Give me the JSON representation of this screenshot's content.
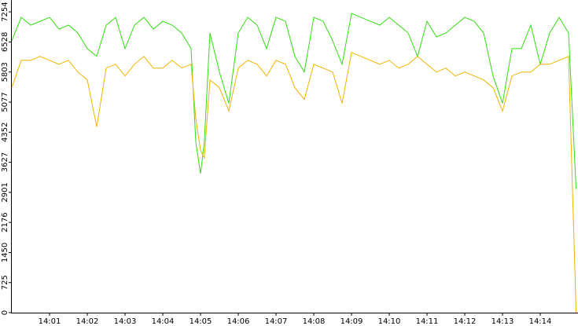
{
  "chart_data": {
    "type": "line",
    "x": [
      0,
      0.25,
      0.5,
      0.75,
      1,
      1.25,
      1.5,
      1.75,
      2,
      2.25,
      2.5,
      2.75,
      3,
      3.25,
      3.5,
      3.75,
      4,
      4.25,
      4.5,
      4.75,
      4.875,
      5,
      5.1,
      5.25,
      5.5,
      5.75,
      6,
      6.25,
      6.5,
      6.75,
      7,
      7.25,
      7.5,
      7.75,
      8,
      8.25,
      8.5,
      8.75,
      9,
      9.25,
      9.5,
      9.75,
      10,
      10.25,
      10.5,
      10.75,
      11,
      11.25,
      11.5,
      11.75,
      12,
      12.25,
      12.5,
      12.75,
      13,
      13.25,
      13.5,
      13.75,
      14,
      14.25,
      14.5,
      14.75,
      14.95
    ],
    "series": [
      {
        "name": "green",
        "color": "#33dd11",
        "values": [
          6556,
          7122,
          6933,
          7027,
          7122,
          6839,
          6933,
          6745,
          6368,
          6180,
          6933,
          7122,
          6368,
          6933,
          7122,
          6839,
          7027,
          6933,
          6745,
          6368,
          4107,
          3354,
          4107,
          6745,
          5803,
          5049,
          6745,
          7122,
          6933,
          6368,
          7122,
          7027,
          6180,
          5803,
          7122,
          7027,
          6556,
          5991,
          7216,
          7122,
          7027,
          6933,
          7122,
          6933,
          6745,
          6180,
          7027,
          6650,
          6745,
          6933,
          7122,
          7027,
          6745,
          5708,
          5049,
          6368,
          6368,
          6933,
          5991,
          6745,
          7122,
          6745,
          2977
        ]
      },
      {
        "name": "orange",
        "color": "#f0b400",
        "values": [
          5426,
          6085,
          6085,
          6180,
          6085,
          5991,
          6085,
          5803,
          5614,
          4484,
          5897,
          5991,
          5708,
          5991,
          6180,
          5897,
          5897,
          6085,
          5897,
          5991,
          4672,
          3919,
          3730,
          5614,
          5426,
          4861,
          5897,
          6085,
          5991,
          5708,
          6085,
          5991,
          5426,
          5143,
          5991,
          5897,
          5803,
          5049,
          6274,
          6180,
          6085,
          5991,
          6085,
          5897,
          5991,
          6180,
          5991,
          5803,
          5897,
          5708,
          5803,
          5708,
          5614,
          5426,
          4861,
          5708,
          5803,
          5803,
          5991,
          5991,
          6085,
          6180,
          0
        ]
      }
    ],
    "xlim": [
      0,
      15
    ],
    "xticks": [
      {
        "value": 1,
        "label": "14:01"
      },
      {
        "value": 2,
        "label": "14:02"
      },
      {
        "value": 3,
        "label": "14:03"
      },
      {
        "value": 4,
        "label": "14:04"
      },
      {
        "value": 5,
        "label": "14:05"
      },
      {
        "value": 6,
        "label": "14:06"
      },
      {
        "value": 7,
        "label": "14:07"
      },
      {
        "value": 8,
        "label": "14:08"
      },
      {
        "value": 9,
        "label": "14:09"
      },
      {
        "value": 10,
        "label": "14:10"
      },
      {
        "value": 11,
        "label": "14:11"
      },
      {
        "value": 12,
        "label": "14:12"
      },
      {
        "value": 13,
        "label": "14:13"
      },
      {
        "value": 14,
        "label": "14:14"
      }
    ],
    "ylim": [
      0,
      7540
    ],
    "yticks": [
      0,
      725,
      1450,
      2176,
      2901,
      3627,
      4352,
      5077,
      5803,
      6528,
      7254
    ]
  }
}
